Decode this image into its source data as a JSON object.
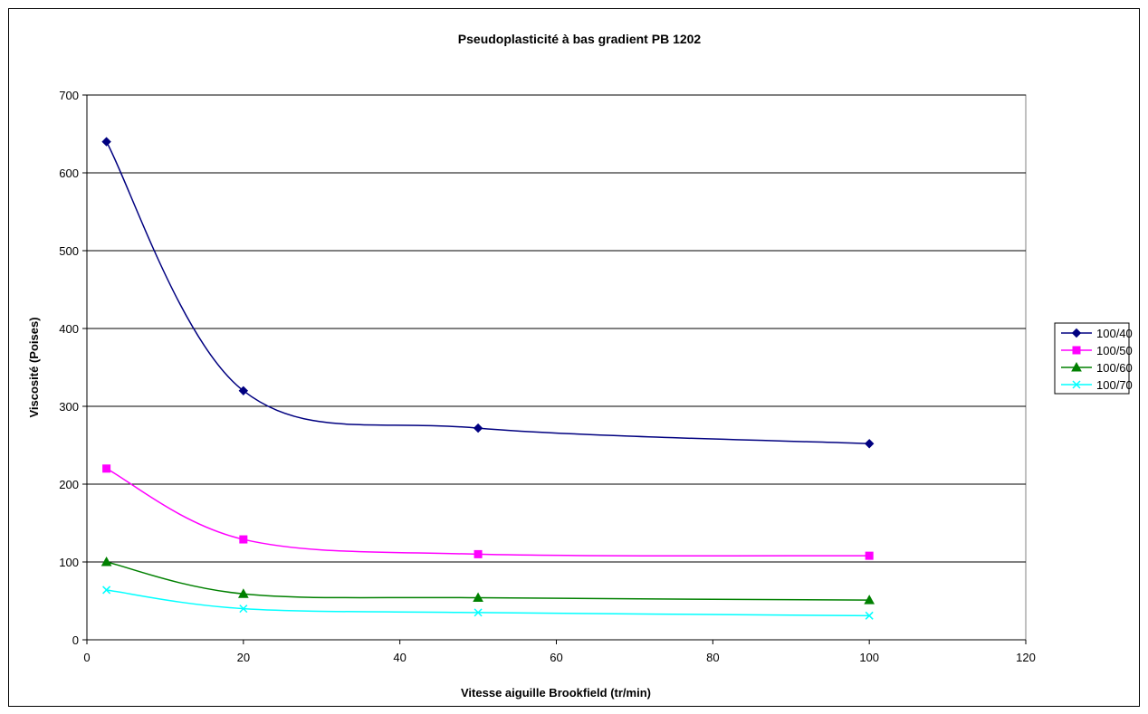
{
  "chart_data": {
    "type": "line",
    "title": "Pseudoplasticité à bas gradient PB 1202",
    "xlabel": "Vitesse aiguille Brookfield (tr/min)",
    "ylabel": "Viscosité (Poises)",
    "xlim": [
      0,
      120
    ],
    "ylim": [
      0,
      700
    ],
    "xticks": [
      0,
      20,
      40,
      60,
      80,
      100,
      120
    ],
    "yticks": [
      0,
      100,
      200,
      300,
      400,
      500,
      600,
      700
    ],
    "grid": "horizontal major",
    "legend_position": "right",
    "smoothed": true,
    "series": [
      {
        "name": "100/40",
        "color": "#000080",
        "marker": "diamond",
        "x": [
          2.5,
          20,
          50,
          100
        ],
        "y": [
          640,
          320,
          272,
          252
        ]
      },
      {
        "name": "100/50",
        "color": "#ff00ff",
        "marker": "square",
        "x": [
          2.5,
          20,
          50,
          100
        ],
        "y": [
          220,
          129,
          110,
          108
        ]
      },
      {
        "name": "100/60",
        "color": "#008000",
        "marker": "triangle",
        "x": [
          2.5,
          20,
          50,
          100
        ],
        "y": [
          100,
          59,
          54,
          51
        ]
      },
      {
        "name": "100/70",
        "color": "#00ffff",
        "marker": "x",
        "x": [
          2.5,
          20,
          50,
          100
        ],
        "y": [
          64,
          40,
          35,
          31
        ]
      }
    ]
  }
}
